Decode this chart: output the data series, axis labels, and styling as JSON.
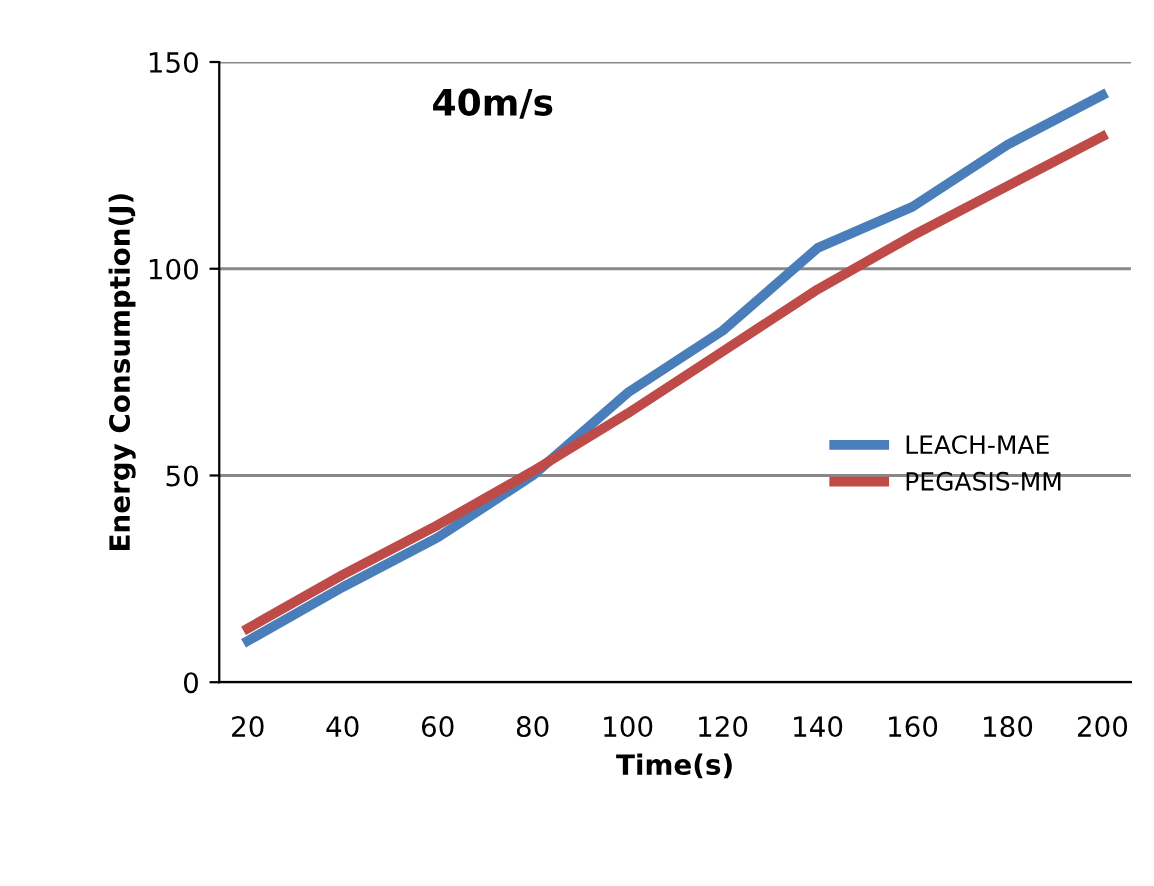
{
  "chart_data": {
    "type": "line",
    "xlabel": "Time(s)",
    "ylabel": "Energy Consumption(J)",
    "annotations": [
      "40m/s"
    ],
    "categories": [
      "20",
      "40",
      "60",
      "80",
      "100",
      "120",
      "140",
      "160",
      "180",
      "200"
    ],
    "series": [
      {
        "name": "LEACH-MAE",
        "color": "#4a7ebb",
        "values": [
          10,
          23,
          35,
          50,
          70,
          85,
          105,
          115,
          130,
          142
        ]
      },
      {
        "name": "PEGASIS-MM",
        "color": "#be4b48",
        "values": [
          13,
          26,
          38,
          51,
          65,
          80,
          95,
          108,
          120,
          132
        ]
      }
    ],
    "ylim": [
      0,
      150
    ],
    "yticks": [
      0,
      50,
      100,
      150
    ],
    "grid": "y",
    "legend": "right",
    "marker": "none",
    "line_style": "solid"
  }
}
